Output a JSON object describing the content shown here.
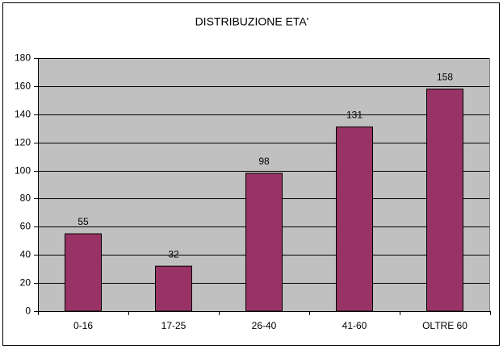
{
  "chart_data": {
    "type": "bar",
    "title": "DISTRIBUZIONE ETA'",
    "categories": [
      "0-16",
      "17-25",
      "26-40",
      "41-60",
      "OLTRE 60"
    ],
    "values": [
      55,
      32,
      98,
      131,
      158
    ],
    "color": "#993366",
    "ylim": [
      0,
      180
    ],
    "yticks": [
      0,
      20,
      40,
      60,
      80,
      100,
      120,
      140,
      160,
      180
    ],
    "grid": true
  }
}
